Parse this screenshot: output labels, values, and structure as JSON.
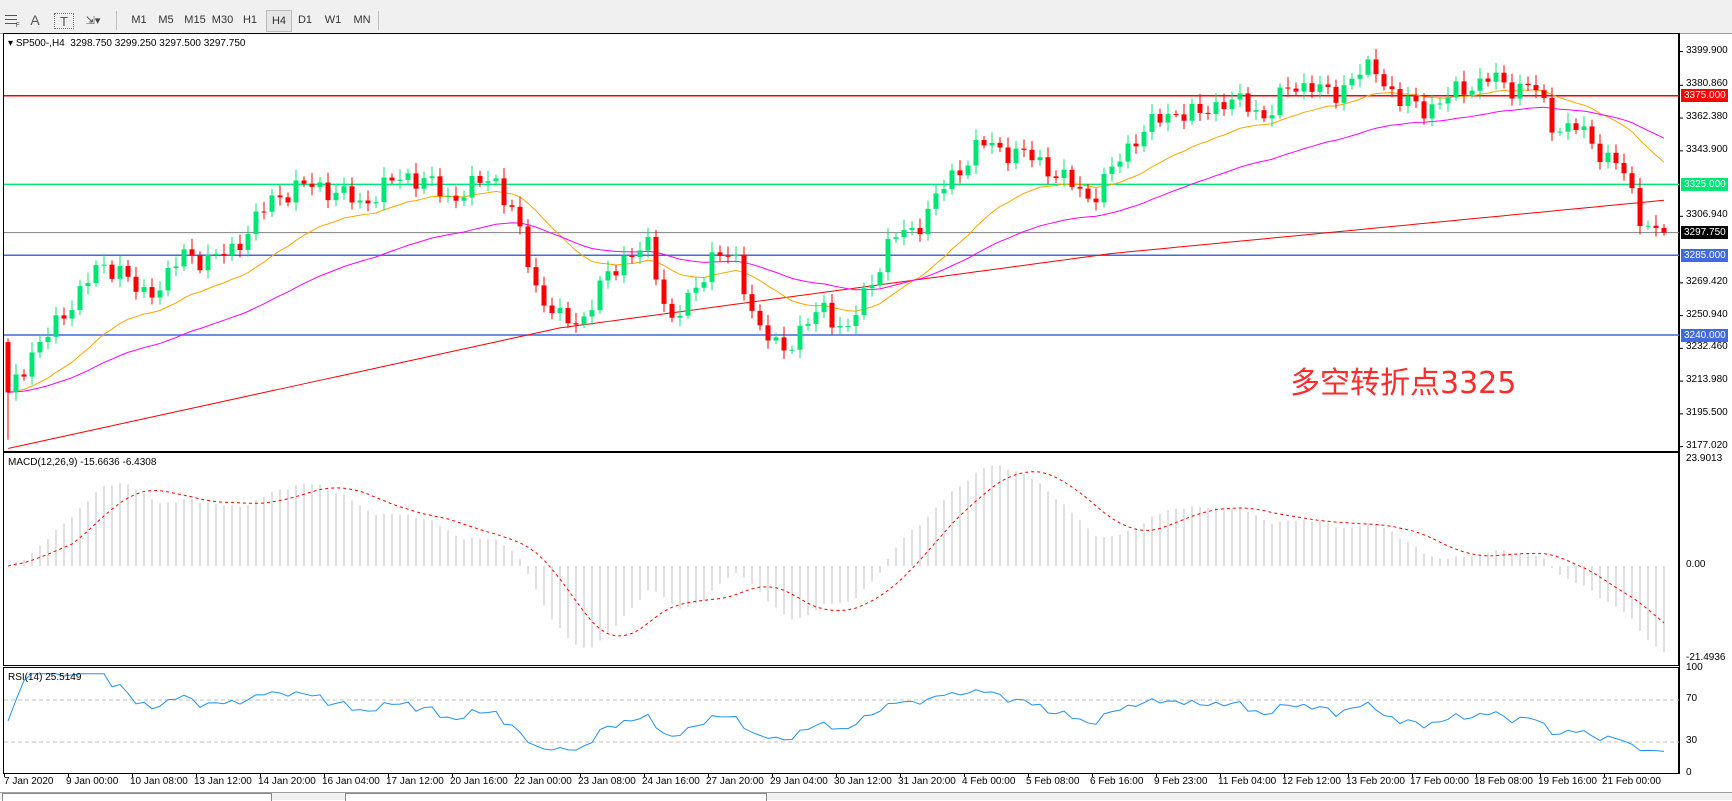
{
  "toolbar": {
    "tools": [
      {
        "icon": "period-separator-icon"
      },
      {
        "icon": "text-icon",
        "label": "A"
      },
      {
        "icon": "text-label-icon",
        "label": "T"
      },
      {
        "icon": "arrows-dropdown-icon"
      }
    ],
    "timeframes": [
      "M1",
      "M5",
      "M15",
      "M30",
      "H1",
      "H4",
      "D1",
      "W1",
      "MN"
    ],
    "active_timeframe": "H4"
  },
  "chart": {
    "symbol_header": "SP500-,H4  3298.750 3299.250 3297.500 3297.750",
    "annotation": "多空转折点3325",
    "price_axis": [
      "3399.900",
      "3380.860",
      "3362.380",
      "3343.900",
      "3306.940",
      "3269.420",
      "3250.940",
      "3232.460",
      "3213.980",
      "3195.500",
      "3177.020"
    ],
    "levels": [
      {
        "label": "3375.000",
        "price": 3375,
        "color": "#ff0000"
      },
      {
        "label": "3325.000",
        "price": 3325,
        "color": "#00e676"
      },
      {
        "label": "3297.750",
        "price": 3297.75,
        "color": "#000000",
        "line": "#808080"
      },
      {
        "label": "3285.000",
        "price": 3285,
        "color": "#4169e1"
      },
      {
        "label": "3240.000",
        "price": 3240,
        "color": "#4169e1"
      }
    ],
    "colors": {
      "bull": "#00e676",
      "bear": "#ff0000",
      "ma_fast": "#ffa500",
      "ma_mid": "#ff00ff",
      "ma_slow": "#ff0000"
    },
    "close_path": [
      3204.6,
      3229.5,
      3242,
      3260.7,
      3276.3,
      3279.4,
      3260.7,
      3270,
      3285.6,
      3282.5,
      3285.6,
      3301.2,
      3316.8,
      3323,
      3324.3,
      3319.9,
      3313.7,
      3323,
      3330.5,
      3326.1,
      3316.8,
      3323,
      3330.5,
      3304.3,
      3263.8,
      3248.2,
      3248.2,
      3270,
      3285.6,
      3288.7,
      3248.2,
      3260.7,
      3288.7,
      3279.4,
      3245.1,
      3229.5,
      3245.1,
      3254.4,
      3242,
      3266.9,
      3295,
      3298.1,
      3316.8,
      3332.4,
      3348,
      3344.8,
      3341.7,
      3335.5,
      3326.1,
      3316.8,
      3332.4,
      3351.1,
      3360.4,
      3366.7,
      3363.5,
      3372.9,
      3369.8,
      3363.5,
      3379.1,
      3382.2,
      3372.9,
      3388.5,
      3388.5,
      3372.9,
      3366.7,
      3372.9,
      3379.1,
      3385.4,
      3379.1,
      3382.2,
      3357.3,
      3357.3,
      3344.8,
      3335.5,
      3305,
      3297.75
    ],
    "ma_slow_path": [
      3176,
      3244,
      3286,
      3316
    ]
  },
  "macd": {
    "label": "MACD(12,26,9) -15.6636 -6.4308",
    "axis": [
      "23.9013",
      "0.00",
      "-21.4936"
    ],
    "colors": {
      "histogram": "#c0c0c0",
      "signal": "#ff0000"
    }
  },
  "rsi": {
    "label": "RSI(14) 25.5149",
    "axis": [
      "100",
      "70",
      "30",
      "0"
    ],
    "color": "#1e90ff"
  },
  "time_axis": [
    "7 Jan 2020",
    "9 Jan 00:00",
    "10 Jan 08:00",
    "13 Jan 12:00",
    "14 Jan 20:00",
    "16 Jan 04:00",
    "17 Jan 12:00",
    "20 Jan 16:00",
    "22 Jan 00:00",
    "23 Jan 08:00",
    "24 Jan 16:00",
    "27 Jan 20:00",
    "29 Jan 04:00",
    "30 Jan 12:00",
    "31 Jan 20:00",
    "4 Feb 00:00",
    "5 Feb 08:00",
    "6 Feb 16:00",
    "9 Feb 23:00",
    "11 Feb 04:00",
    "12 Feb 12:00",
    "13 Feb 20:00",
    "17 Feb 00:00",
    "18 Feb 08:00",
    "19 Feb 16:00",
    "21 Feb 00:00"
  ]
}
